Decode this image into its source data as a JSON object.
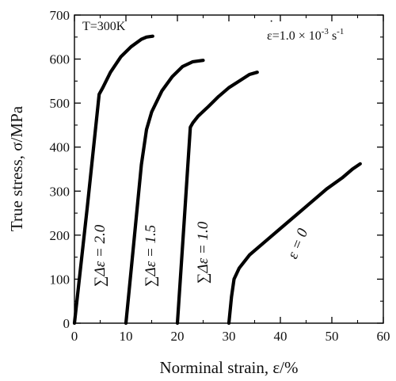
{
  "chart_data": {
    "type": "line",
    "title": "",
    "xlabel": "Norminal strain, ε/%",
    "ylabel": "True stress, σ/MPa",
    "xlim": [
      0,
      60
    ],
    "ylim": [
      0,
      700
    ],
    "x_ticks": [
      "0",
      "10",
      "20",
      "30",
      "40",
      "50",
      "60"
    ],
    "y_ticks": [
      "0",
      "100",
      "200",
      "300",
      "400",
      "500",
      "600",
      "700"
    ],
    "grid": false,
    "annotations": {
      "temperature": "T=300K",
      "strain_rate": "ε=1.0 × 10",
      "strain_rate_exp": "-3",
      "strain_rate_unit": " s",
      "strain_rate_unit_exp": "-1"
    },
    "series": [
      {
        "name": "∑Δε = 2.0",
        "x": [
          0,
          2.5,
          4.8,
          5.5,
          7,
          9,
          11,
          13,
          14,
          15.2
        ],
        "y": [
          0,
          265,
          520,
          535,
          570,
          605,
          628,
          645,
          650,
          652
        ]
      },
      {
        "name": "∑Δε = 1.5",
        "x": [
          10,
          11.5,
          13,
          14,
          15,
          17,
          19,
          21,
          23,
          25
        ],
        "y": [
          0,
          180,
          360,
          440,
          480,
          528,
          560,
          583,
          594,
          597
        ]
      },
      {
        "name": "∑Δε = 1.0",
        "x": [
          20,
          21.3,
          22.5,
          23,
          24,
          26,
          28,
          30,
          32,
          34,
          35.5
        ],
        "y": [
          0,
          230,
          445,
          455,
          470,
          492,
          515,
          535,
          550,
          565,
          570
        ]
      },
      {
        "name": "ε = 0",
        "x": [
          30,
          30.5,
          31,
          32,
          34,
          37,
          40,
          43,
          46,
          49,
          52,
          54,
          55.5
        ],
        "y": [
          0,
          60,
          100,
          125,
          155,
          185,
          215,
          245,
          275,
          305,
          330,
          350,
          362
        ]
      }
    ]
  }
}
